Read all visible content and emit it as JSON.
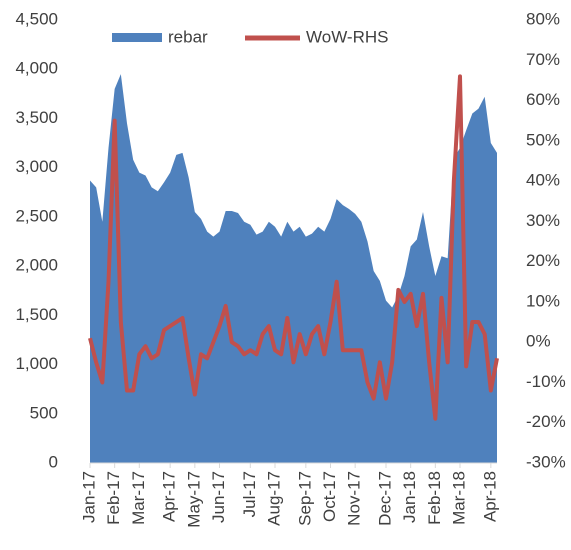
{
  "chart_data": {
    "type": "area",
    "categories": [
      "Jan-17",
      null,
      null,
      null,
      "Feb-17",
      null,
      null,
      null,
      "Mar-17",
      null,
      null,
      null,
      null,
      "Apr-17",
      null,
      null,
      null,
      "May-17",
      null,
      null,
      null,
      "Jun-17",
      null,
      null,
      null,
      null,
      "Jul-17",
      null,
      null,
      null,
      "Aug-17",
      null,
      null,
      null,
      null,
      "Sep-17",
      null,
      null,
      null,
      "Oct-17",
      null,
      null,
      null,
      "Nov-17",
      null,
      null,
      null,
      null,
      "Dec-17",
      null,
      null,
      null,
      "Jan-18",
      null,
      null,
      null,
      "Feb-18",
      null,
      null,
      null,
      "Mar-18",
      null,
      null,
      null,
      null,
      "Apr-18",
      null
    ],
    "series": [
      {
        "name": "rebar",
        "type": "area",
        "axis": "y",
        "color": "#4f81bd",
        "values": [
          2870,
          2800,
          2450,
          3200,
          3800,
          3950,
          3450,
          3080,
          2950,
          2920,
          2800,
          2760,
          2850,
          2950,
          3130,
          3150,
          2900,
          2550,
          2480,
          2350,
          2300,
          2350,
          2560,
          2560,
          2540,
          2450,
          2420,
          2320,
          2350,
          2450,
          2400,
          2300,
          2450,
          2350,
          2400,
          2300,
          2330,
          2400,
          2350,
          2480,
          2680,
          2620,
          2580,
          2530,
          2450,
          2250,
          1950,
          1850,
          1650,
          1580,
          1700,
          1900,
          2200,
          2270,
          2550,
          2200,
          1900,
          2100,
          2080,
          3100,
          3200,
          3380,
          3550,
          3600,
          3720,
          3250,
          3150
        ]
      },
      {
        "name": "WoW-RHS",
        "type": "line",
        "axis": "y2",
        "color": "#c0504d",
        "values": [
          1,
          -5,
          -10,
          15,
          55,
          5,
          -12,
          -12,
          -3,
          -1,
          -4,
          -3,
          3,
          4,
          5,
          6,
          -4,
          -13,
          -3,
          -4,
          0,
          4,
          9,
          0,
          -1,
          -3,
          -2,
          -3,
          2,
          4,
          -2,
          -3,
          6,
          -5,
          2,
          -3,
          2,
          4,
          -3,
          5,
          15,
          -2,
          -2,
          -2,
          -2,
          -10,
          -14,
          -5,
          -14,
          -5,
          13,
          10,
          12,
          4,
          12,
          -5,
          -19,
          11,
          -5,
          40,
          66,
          -6,
          5,
          5,
          2,
          -12,
          -4
        ]
      }
    ],
    "ylim": [
      0,
      4500
    ],
    "yticks": [
      0,
      500,
      {
        "value": 1000,
        "label": "1,000"
      },
      {
        "value": 1500,
        "label": "1,500"
      },
      {
        "value": 2000,
        "label": "2,000"
      },
      {
        "value": 2500,
        "label": "2,500"
      },
      {
        "value": 3000,
        "label": "3,000"
      },
      {
        "value": 3500,
        "label": "3,500"
      },
      {
        "value": 4000,
        "label": "4,000"
      },
      {
        "value": 4500,
        "label": "4,500"
      }
    ],
    "y2lim": [
      -30,
      80
    ],
    "y2ticks": [
      {
        "value": -30,
        "label": "-30%"
      },
      {
        "value": -20,
        "label": "-20%"
      },
      {
        "value": -10,
        "label": "-10%"
      },
      {
        "value": 0,
        "label": "0%"
      },
      {
        "value": 10,
        "label": "10%"
      },
      {
        "value": 20,
        "label": "20%"
      },
      {
        "value": 30,
        "label": "30%"
      },
      {
        "value": 40,
        "label": "40%"
      },
      {
        "value": 50,
        "label": "50%"
      },
      {
        "value": 60,
        "label": "60%"
      },
      {
        "value": 70,
        "label": "70%"
      },
      {
        "value": 80,
        "label": "80%"
      }
    ],
    "legend": "top"
  }
}
